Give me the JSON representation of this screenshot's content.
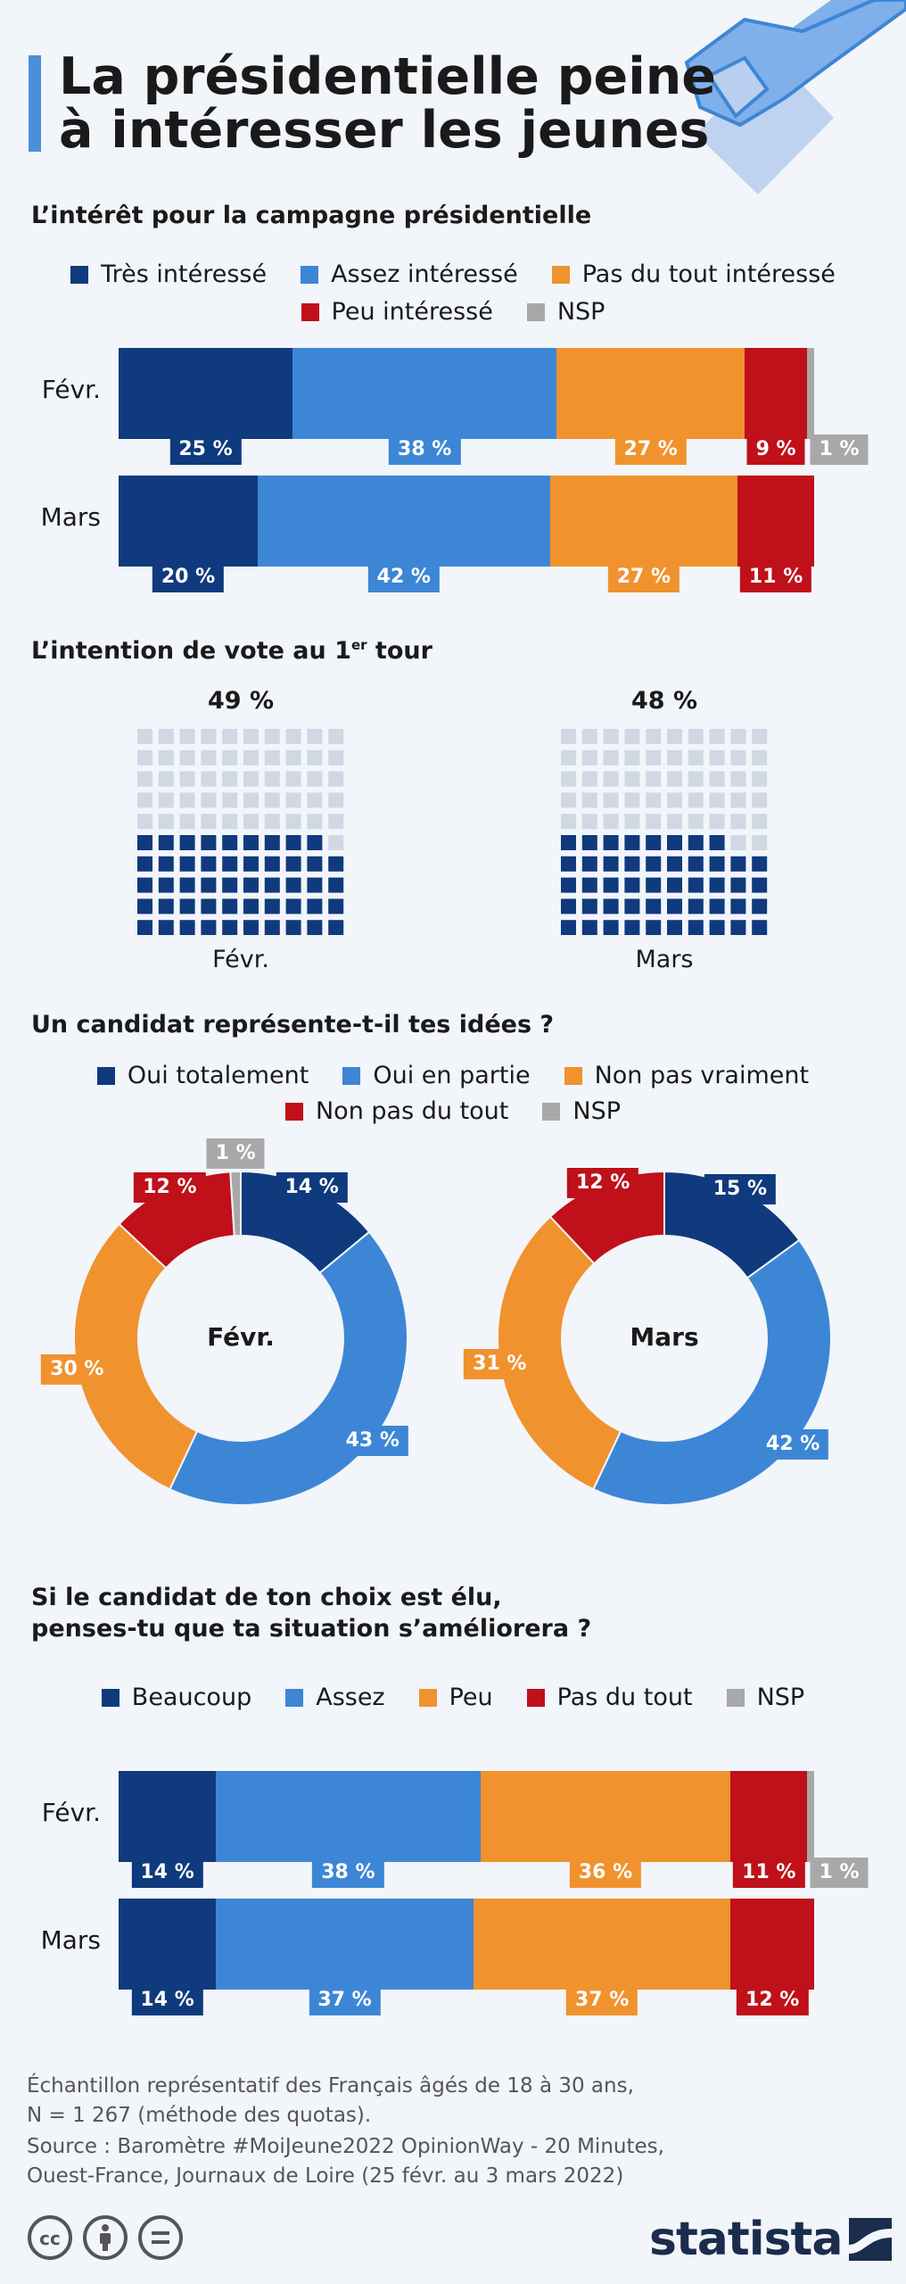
{
  "title": {
    "line1": "La présidentielle peine",
    "line2": "à intéresser les jeunes"
  },
  "colors": {
    "dark_blue": "#0f3a7d",
    "light_blue": "#3d86d6",
    "orange": "#f0922e",
    "red": "#c0101a",
    "gray": "#a8a8a8",
    "waffle_empty": "#cfd8e3"
  },
  "chart_data": [
    {
      "type": "bar",
      "stacked": true,
      "orientation": "horizontal",
      "title": "L’intérêt pour la campagne présidentielle",
      "categories": [
        "Févr.",
        "Mars"
      ],
      "series": [
        {
          "name": "Très intéressé",
          "color": "#0f3a7d",
          "values": [
            25,
            20
          ]
        },
        {
          "name": "Assez intéressé",
          "color": "#3d86d6",
          "values": [
            38,
            42
          ]
        },
        {
          "name": "Pas du tout intéressé",
          "color": "#f0922e",
          "values": [
            27,
            27
          ]
        },
        {
          "name": "Peu intéressé",
          "color": "#c0101a",
          "values": [
            9,
            11
          ]
        },
        {
          "name": "NSP",
          "color": "#a8a8a8",
          "values": [
            1,
            0
          ]
        }
      ],
      "xlim": [
        0,
        100
      ]
    },
    {
      "type": "waffle",
      "title_main": "L’intention de vote au 1",
      "title_sup": "er",
      "title_end": " tour",
      "categories": [
        "Févr.",
        "Mars"
      ],
      "values": [
        49,
        48
      ],
      "value_labels": [
        "49 %",
        "48 %"
      ]
    },
    {
      "type": "pie",
      "title": "Un candidat représente-t-il tes idées ?",
      "categories": [
        "Févr.",
        "Mars"
      ],
      "series": [
        {
          "name": "Oui totalement",
          "color": "#0f3a7d",
          "values": [
            14,
            15
          ]
        },
        {
          "name": "Oui en partie",
          "color": "#3d86d6",
          "values": [
            43,
            42
          ]
        },
        {
          "name": "Non pas vraiment",
          "color": "#f0922e",
          "values": [
            30,
            31
          ]
        },
        {
          "name": "Non pas du tout",
          "color": "#c0101a",
          "values": [
            12,
            12
          ]
        },
        {
          "name": "NSP",
          "color": "#a8a8a8",
          "values": [
            1,
            0
          ]
        }
      ]
    },
    {
      "type": "bar",
      "stacked": true,
      "orientation": "horizontal",
      "title_line1": "Si le candidat de ton choix est élu,",
      "title_line2": "penses-tu que ta situation s’améliorera ?",
      "categories": [
        "Févr.",
        "Mars"
      ],
      "series": [
        {
          "name": "Beaucoup",
          "color": "#0f3a7d",
          "values": [
            14,
            14
          ]
        },
        {
          "name": "Assez",
          "color": "#3d86d6",
          "values": [
            38,
            37
          ]
        },
        {
          "name": "Peu",
          "color": "#f0922e",
          "values": [
            36,
            37
          ]
        },
        {
          "name": "Pas du tout",
          "color": "#c0101a",
          "values": [
            11,
            12
          ]
        },
        {
          "name": "NSP",
          "color": "#a8a8a8",
          "values": [
            1,
            0
          ]
        }
      ],
      "xlim": [
        0,
        100
      ]
    }
  ],
  "footer": {
    "note_line1": "Échantillon représentatif des Français âgés de 18 à 30 ans,",
    "note_line2": "N = 1 267 (méthode des quotas).",
    "source_line1": "Source : Baromètre #MoiJeune2022 OpinionWay - 20 Minutes,",
    "source_line2": "Ouest-France, Journaux de Loire (25 févr. au 3 mars 2022)",
    "brand": "statista",
    "license_icons": [
      "cc-icon",
      "by-icon",
      "nd-icon"
    ]
  }
}
